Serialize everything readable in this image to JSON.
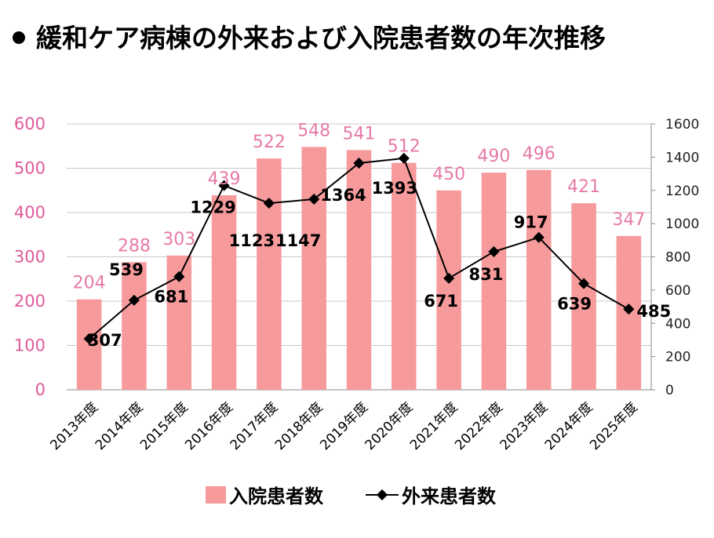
{
  "chart_data": {
    "type": "bar",
    "title": "緩和ケア病棟の外来および入院患者数の年次推移",
    "categories": [
      "2013年度",
      "2014年度",
      "2015年度",
      "2016年度",
      "2017年度",
      "2018年度",
      "2019年度",
      "2020年度",
      "2021年度",
      "2022年度",
      "2023年度",
      "2024年度",
      "2025年度"
    ],
    "series": [
      {
        "name": "入院患者数",
        "kind": "bar",
        "axis": "left",
        "color": "#f79a9c",
        "values": [
          204,
          288,
          303,
          439,
          522,
          548,
          541,
          512,
          450,
          490,
          496,
          421,
          347
        ]
      },
      {
        "name": "外来患者数",
        "kind": "line",
        "axis": "right",
        "color": "#000000",
        "values": [
          307,
          539,
          681,
          1229,
          1123,
          1147,
          1364,
          1393,
          671,
          831,
          917,
          639,
          485
        ]
      }
    ],
    "y_left": {
      "min": 0,
      "max": 600,
      "ticks": [
        "0",
        "100",
        "200",
        "300",
        "400",
        "500",
        "600"
      ],
      "color": "#e05a9c"
    },
    "y_right": {
      "min": 0,
      "max": 1600,
      "ticks": [
        "0",
        "200",
        "400",
        "600",
        "800",
        "1000",
        "1200",
        "1400",
        "1600"
      ]
    },
    "grid": true,
    "legend_position": "bottom"
  }
}
